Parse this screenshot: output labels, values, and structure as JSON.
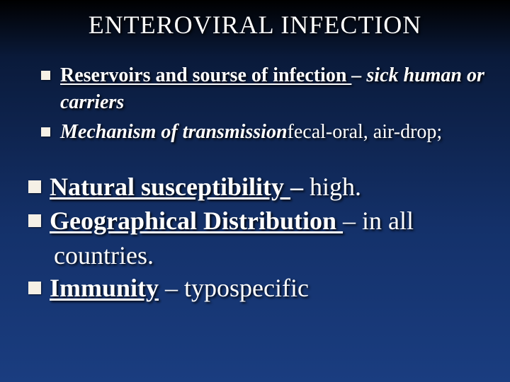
{
  "title": "ENTEROVIRAL INFECTION",
  "group1": [
    {
      "segments": [
        {
          "text": "Reservoirs and sourse of infection ",
          "classes": "b u"
        },
        {
          "text": "– sick human or carriers",
          "classes": "b i"
        }
      ]
    },
    {
      "segments": [
        {
          "text": "Mechanism of transmission",
          "classes": "b i"
        },
        {
          "text": "fecal-oral, air-drop;",
          "classes": ""
        }
      ]
    }
  ],
  "group2": [
    {
      "segments": [
        {
          "text": "Natural susceptibility ",
          "classes": "b u"
        },
        {
          "text": " – ",
          "classes": "b"
        },
        {
          "text": "high.",
          "classes": ""
        }
      ]
    },
    {
      "segments": [
        {
          "text": "Geographical Distribution ",
          "classes": "b u"
        },
        {
          "text": " – in all",
          "classes": ""
        }
      ],
      "cont": "countries."
    },
    {
      "segments": [
        {
          "text": "Immunity",
          "classes": "b u"
        },
        {
          "text": " – typospecific",
          "classes": ""
        }
      ]
    }
  ],
  "style": {
    "title_fontsize": 36,
    "body1_fontsize": 28,
    "body2_fontsize": 36,
    "bullet_color": "#f5f0e6",
    "text_color": "#ffffff",
    "bg_gradient": [
      "#000000",
      "#0a1a3a",
      "#14316a",
      "#1a3d80"
    ]
  }
}
